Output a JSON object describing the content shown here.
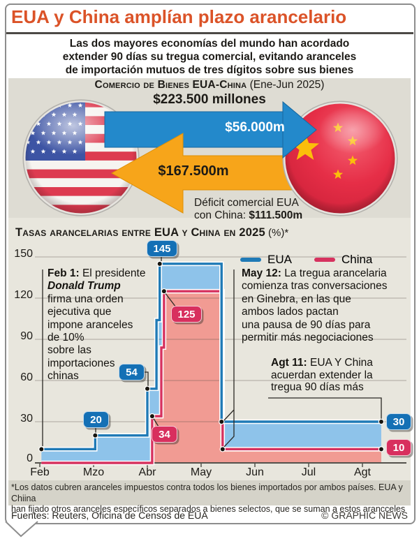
{
  "header": {
    "title": "EUA y China amplían plazo arancelario",
    "subtitle_lines": [
      "Las dos mayores economías del mundo han acordado",
      "extender 90 días su tregua comercial, evitando aranceles",
      "de importación mutuos de tres dígitos sobre sus bienes"
    ]
  },
  "trade": {
    "heading": "Comercio de Bienes EUA-China",
    "heading_period": " (Ene-Jun 2025)",
    "total_label": "$223.500 millones",
    "exports_to_china": "$56.000m",
    "imports_from_china": "$167.500m",
    "deficit_line1": "Déficit comercial EUA",
    "deficit_line2_prefix": "con China: ",
    "deficit_value": "$111.500m",
    "icons": {
      "left_ball": "usa-flag-ball",
      "right_ball": "china-flag-ball"
    },
    "colors": {
      "export_arrow": "#2389cb",
      "import_arrow": "#f7a51a"
    }
  },
  "chart_data": {
    "type": "step-area",
    "title": "Tasas arancelarias entre EUA y China en 2025",
    "title_suffix": " (%)*",
    "x_unit": "months after Feb 1 2025",
    "ylim": [
      0,
      150
    ],
    "y_ticks": [
      150,
      120,
      90,
      60,
      30,
      0
    ],
    "x_ticks": [
      "Feb",
      "Mzo",
      "Abr",
      "May",
      "Jun",
      "Jul",
      "Agt"
    ],
    "grid": true,
    "legend_position": "top-right",
    "legend": [
      {
        "name": "EUA",
        "color": "#1f7ab6"
      },
      {
        "name": "China",
        "color": "#d6325f"
      }
    ],
    "series": [
      {
        "name": "EUA",
        "color": "#1f7ab6",
        "fill": "#8ec3ea",
        "end": 6.35,
        "points": [
          [
            0.03,
            10
          ],
          [
            1.03,
            20
          ],
          [
            2.0,
            54
          ],
          [
            2.17,
            104
          ],
          [
            2.23,
            145
          ],
          [
            3.38,
            30
          ]
        ]
      },
      {
        "name": "China",
        "color": "#d6325f",
        "fill": "#f19b93",
        "end": 6.35,
        "points": [
          [
            0.03,
            0
          ],
          [
            2.09,
            34
          ],
          [
            2.26,
            84
          ],
          [
            2.31,
            125
          ],
          [
            3.4,
            10
          ]
        ]
      }
    ],
    "markers": {
      "EUA": [
        [
          0.03,
          10
        ],
        [
          1.03,
          20
        ],
        [
          2.0,
          54
        ],
        [
          2.23,
          145
        ],
        [
          3.38,
          30
        ],
        [
          6.35,
          30
        ]
      ],
      "China": [
        [
          2.09,
          34
        ],
        [
          2.31,
          125
        ],
        [
          3.4,
          10
        ],
        [
          6.35,
          10
        ]
      ]
    },
    "badges": [
      {
        "value": "145",
        "series": "EUA"
      },
      {
        "value": "125",
        "series": "China"
      },
      {
        "value": "54",
        "series": "EUA"
      },
      {
        "value": "20",
        "series": "EUA"
      },
      {
        "value": "34",
        "series": "China"
      },
      {
        "value": "30",
        "series": "EUA"
      },
      {
        "value": "10",
        "series": "China"
      }
    ],
    "annotations": {
      "feb1": {
        "prefix": "Feb 1:",
        "lines": [
          "El presidente",
          "Donald Trump",
          "firma una orden",
          "ejecutiva que",
          "impone aranceles",
          "de 10%",
          "sobre las",
          "importaciones",
          "chinas"
        ]
      },
      "may12": {
        "prefix": "May 12:",
        "lines": [
          "La tregua arancelaria",
          "comienza tras conversaciones",
          "en Ginebra, en las que",
          "ambos lados pactan",
          "una pausa de 90 días para",
          "permitir más negociaciones"
        ]
      },
      "agt11": {
        "prefix": "Agt 11:",
        "lines": [
          "EUA Y China",
          "acuerdan extender la",
          "tregua 90 días más"
        ]
      }
    }
  },
  "footnote_lines": [
    "*Los datos cubren aranceles impuestos contra todos los bienes importados por ambos países. EUA y Chiina",
    "han fijado otros aranceles específicos separados a bienes selectos, que se suman a estos arancceles"
  ],
  "frame": {
    "source": "Fuentes: Reuters, Oficina de Censos de EUA",
    "credit": "© GRAPHIC NEWS"
  }
}
